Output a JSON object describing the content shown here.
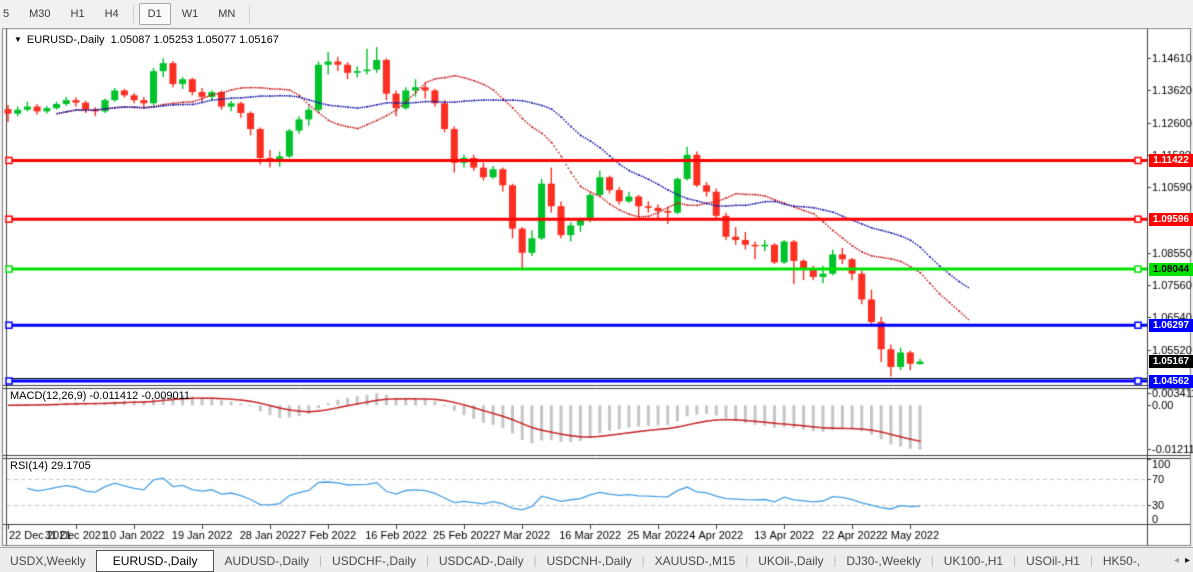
{
  "toolbar": {
    "timeframes": [
      "5",
      "M30",
      "H1",
      "H4",
      "D1",
      "W1",
      "MN"
    ],
    "active_timeframe": "D1",
    "separators_after": [
      "H4",
      "MN"
    ]
  },
  "icons": {
    "dropdown": "▼",
    "tab_scroll_left": "◂",
    "tab_scroll_right": "▸"
  },
  "chart": {
    "symbol": "EURUSD-,Daily",
    "ohlc_text": "1.05087 1.05253 1.05077 1.05167"
  },
  "indicators": {
    "macd_name": "MACD(12,26,9)",
    "macd_values": "-0.011412 -0.009011",
    "rsi_name": "RSI(14)",
    "rsi_value": "29.1705"
  },
  "tabs": {
    "items": [
      "USDX,Weekly",
      "EURUSD-,Daily",
      "AUDUSD-,Daily",
      "USDCHF-,Daily",
      "USDCAD-,Daily",
      "USDCNH-,Daily",
      "XAUUSD-,M15",
      "UKOil-,Daily",
      "DJ30-,Weekly",
      "UK100-,H1",
      "USOil-,H1",
      "HK50-,"
    ],
    "active": "EURUSD-,Daily"
  },
  "chart_data": {
    "type": "candlestick",
    "title": "EURUSD-,Daily",
    "current_ohlc": {
      "open": 1.05087,
      "high": 1.05253,
      "low": 1.05077,
      "close": 1.05167
    },
    "y_range": [
      1.15481,
      1.04438
    ],
    "price_ticks": [
      1.1461,
      1.1362,
      1.126,
      1.1158,
      1.1059,
      1.0855,
      1.0756,
      1.0654,
      1.0552
    ],
    "levels": [
      {
        "price": 1.11422,
        "color": "#ff0000",
        "text_color": "#ffffff",
        "width": 3,
        "label": "1.11422"
      },
      {
        "price": 1.09596,
        "color": "#ff0000",
        "text_color": "#ffffff",
        "width": 3,
        "label": "1.09596"
      },
      {
        "price": 1.08044,
        "color": "#00e102",
        "text_color": "#000000",
        "width": 3,
        "label": "1.08044"
      },
      {
        "price": 1.06297,
        "color": "#0000ff",
        "text_color": "#ffffff",
        "width": 3,
        "label": "1.06297"
      },
      {
        "price": 1.0464,
        "color": "#000000",
        "text_color": null,
        "width": 1,
        "label": null
      },
      {
        "price": 1.04562,
        "color": "#0000ff",
        "text_color": "#ffffff",
        "width": 3,
        "label": "1.04562"
      }
    ],
    "current_price_label": {
      "value": 1.05167,
      "text": "1.05167",
      "bg": "#000000",
      "text_color": "#ffffff"
    },
    "date_labels": [
      "22 Dec 2021",
      "31 Dec 2021",
      "10 Jan 2022",
      "19 Jan 2022",
      "28 Jan 2022",
      "7 Feb 2022",
      "16 Feb 2022",
      "25 Feb 2022",
      "7 Mar 2022",
      "16 Mar 2022",
      "25 Mar 2022",
      "4 Apr 2022",
      "13 Apr 2022",
      "22 Apr 2022",
      "2 May 2022"
    ],
    "date_label_indices": [
      0,
      7,
      13,
      20,
      27,
      33,
      40,
      47,
      53,
      60,
      67,
      73,
      80,
      87,
      93
    ],
    "ohlc": [
      [
        1.1302,
        1.1315,
        1.1262,
        1.1288
      ],
      [
        1.1288,
        1.131,
        1.128,
        1.13
      ],
      [
        1.13,
        1.1325,
        1.1295,
        1.131
      ],
      [
        1.131,
        1.1318,
        1.1285,
        1.1295
      ],
      [
        1.1295,
        1.1312,
        1.1288,
        1.1305
      ],
      [
        1.1305,
        1.1325,
        1.13,
        1.1318
      ],
      [
        1.1318,
        1.134,
        1.1312,
        1.133
      ],
      [
        1.133,
        1.1338,
        1.131,
        1.1322
      ],
      [
        1.1322,
        1.1328,
        1.129,
        1.13
      ],
      [
        1.13,
        1.1308,
        1.128,
        1.1295
      ],
      [
        1.1295,
        1.1335,
        1.129,
        1.133
      ],
      [
        1.133,
        1.1368,
        1.1325,
        1.136
      ],
      [
        1.136,
        1.1365,
        1.1338,
        1.1345
      ],
      [
        1.1345,
        1.1352,
        1.132,
        1.133
      ],
      [
        1.133,
        1.134,
        1.1305,
        1.132
      ],
      [
        1.132,
        1.143,
        1.1315,
        1.142
      ],
      [
        1.142,
        1.146,
        1.1402,
        1.1445
      ],
      [
        1.1445,
        1.1452,
        1.137,
        1.138
      ],
      [
        1.138,
        1.1402,
        1.1365,
        1.1395
      ],
      [
        1.1395,
        1.14,
        1.1345,
        1.1355
      ],
      [
        1.1355,
        1.1368,
        1.1325,
        1.134
      ],
      [
        1.134,
        1.136,
        1.133,
        1.1355
      ],
      [
        1.1355,
        1.136,
        1.13,
        1.131
      ],
      [
        1.131,
        1.1328,
        1.1295,
        1.132
      ],
      [
        1.132,
        1.1325,
        1.1275,
        1.129
      ],
      [
        1.129,
        1.1295,
        1.122,
        1.124
      ],
      [
        1.124,
        1.1245,
        1.113,
        1.115
      ],
      [
        1.115,
        1.1175,
        1.112,
        1.1145
      ],
      [
        1.1145,
        1.117,
        1.1122,
        1.1155
      ],
      [
        1.1155,
        1.124,
        1.115,
        1.1235
      ],
      [
        1.1235,
        1.128,
        1.1225,
        1.127
      ],
      [
        1.127,
        1.131,
        1.125,
        1.13
      ],
      [
        1.13,
        1.145,
        1.129,
        1.144
      ],
      [
        1.144,
        1.148,
        1.141,
        1.145
      ],
      [
        1.145,
        1.1465,
        1.142,
        1.144
      ],
      [
        1.144,
        1.1448,
        1.1395,
        1.1415
      ],
      [
        1.1415,
        1.1435,
        1.14,
        1.142
      ],
      [
        1.142,
        1.149,
        1.141,
        1.1425
      ],
      [
        1.1425,
        1.1495,
        1.1415,
        1.1455
      ],
      [
        1.1455,
        1.146,
        1.133,
        1.135
      ],
      [
        1.135,
        1.136,
        1.128,
        1.1305
      ],
      [
        1.1305,
        1.137,
        1.13,
        1.136
      ],
      [
        1.136,
        1.1395,
        1.134,
        1.137
      ],
      [
        1.137,
        1.138,
        1.1335,
        1.136
      ],
      [
        1.136,
        1.1365,
        1.131,
        1.132
      ],
      [
        1.132,
        1.133,
        1.123,
        1.124
      ],
      [
        1.124,
        1.1248,
        1.1105,
        1.1135
      ],
      [
        1.1135,
        1.116,
        1.112,
        1.115
      ],
      [
        1.115,
        1.116,
        1.111,
        1.112
      ],
      [
        1.112,
        1.1135,
        1.108,
        1.109
      ],
      [
        1.109,
        1.1125,
        1.1085,
        1.1115
      ],
      [
        1.1115,
        1.112,
        1.1045,
        1.1065
      ],
      [
        1.1065,
        1.107,
        1.09,
        1.093
      ],
      [
        1.093,
        1.0935,
        1.0806,
        1.0855
      ],
      [
        1.0855,
        1.0925,
        1.0845,
        1.09
      ],
      [
        1.09,
        1.1085,
        1.0895,
        1.107
      ],
      [
        1.107,
        1.112,
        1.098,
        1.1
      ],
      [
        1.1,
        1.1015,
        1.09,
        1.091
      ],
      [
        1.091,
        1.095,
        1.089,
        1.094
      ],
      [
        1.094,
        1.0965,
        1.092,
        1.096
      ],
      [
        1.096,
        1.104,
        1.095,
        1.1035
      ],
      [
        1.1035,
        1.111,
        1.103,
        1.109
      ],
      [
        1.109,
        1.1095,
        1.104,
        1.105
      ],
      [
        1.105,
        1.106,
        1.1005,
        1.1015
      ],
      [
        1.1015,
        1.1045,
        1.101,
        1.103
      ],
      [
        1.103,
        1.1035,
        1.0965,
        1.1
      ],
      [
        1.1,
        1.1015,
        1.098,
        1.0995
      ],
      [
        1.0995,
        1.1005,
        1.096,
        1.0985
      ],
      [
        1.0985,
        1.0995,
        1.0945,
        1.098
      ],
      [
        1.098,
        1.109,
        1.0975,
        1.1085
      ],
      [
        1.1085,
        1.1185,
        1.108,
        1.116
      ],
      [
        1.116,
        1.117,
        1.106,
        1.1065
      ],
      [
        1.1065,
        1.1075,
        1.103,
        1.1045
      ],
      [
        1.1045,
        1.1055,
        1.096,
        1.097
      ],
      [
        1.097,
        1.098,
        1.0895,
        1.0905
      ],
      [
        1.0905,
        1.0935,
        1.088,
        1.0895
      ],
      [
        1.0895,
        1.092,
        1.0865,
        1.088
      ],
      [
        1.088,
        1.089,
        1.0835,
        1.0875
      ],
      [
        1.0875,
        1.0895,
        1.086,
        1.088
      ],
      [
        1.088,
        1.0885,
        1.082,
        1.0825
      ],
      [
        1.0825,
        1.0895,
        1.082,
        1.089
      ],
      [
        1.089,
        1.0895,
        1.0758,
        1.083
      ],
      [
        1.083,
        1.0835,
        1.077,
        1.0805
      ],
      [
        1.0805,
        1.0815,
        1.077,
        1.078
      ],
      [
        1.078,
        1.0815,
        1.076,
        1.079
      ],
      [
        1.079,
        1.0865,
        1.0785,
        1.085
      ],
      [
        1.085,
        1.087,
        1.082,
        1.0835
      ],
      [
        1.0835,
        1.084,
        1.077,
        1.079
      ],
      [
        1.079,
        1.08,
        1.0695,
        1.071
      ],
      [
        1.071,
        1.074,
        1.063,
        1.064
      ],
      [
        1.064,
        1.0655,
        1.0515,
        1.0555
      ],
      [
        1.0555,
        1.057,
        1.047,
        1.05
      ],
      [
        1.05,
        1.056,
        1.049,
        1.0545
      ],
      [
        1.0545,
        1.055,
        1.049,
        1.051
      ],
      [
        1.05087,
        1.05253,
        1.05077,
        1.05167
      ]
    ],
    "moving_averages": [
      {
        "period": 10,
        "shift": 5,
        "color": "#c41d1d"
      },
      {
        "period": 20,
        "shift": 5,
        "color": "#1717a8"
      }
    ],
    "macd_panel": {
      "value_range": [
        0.00452,
        -0.0138
      ],
      "axis_ticks": [
        {
          "v": 0.003411,
          "t": "0.003411"
        },
        {
          "v": 0.0,
          "t": "0.00"
        },
        {
          "v": -0.012118,
          "t": "-0.012118"
        }
      ],
      "histogram_color": "#c6c6c6",
      "signal_color": "#c41d1d"
    },
    "rsi_panel": {
      "value_range": [
        100,
        0
      ],
      "axis_ticks": [
        100,
        70,
        30,
        0
      ],
      "guide_lines": [
        70,
        30
      ],
      "line_color": "#4a9fe3"
    },
    "colors": {
      "bull": "#00c22b",
      "bear": "#fb2e21",
      "background": "#ffffff",
      "border": "#808080",
      "text": "#000000"
    }
  }
}
